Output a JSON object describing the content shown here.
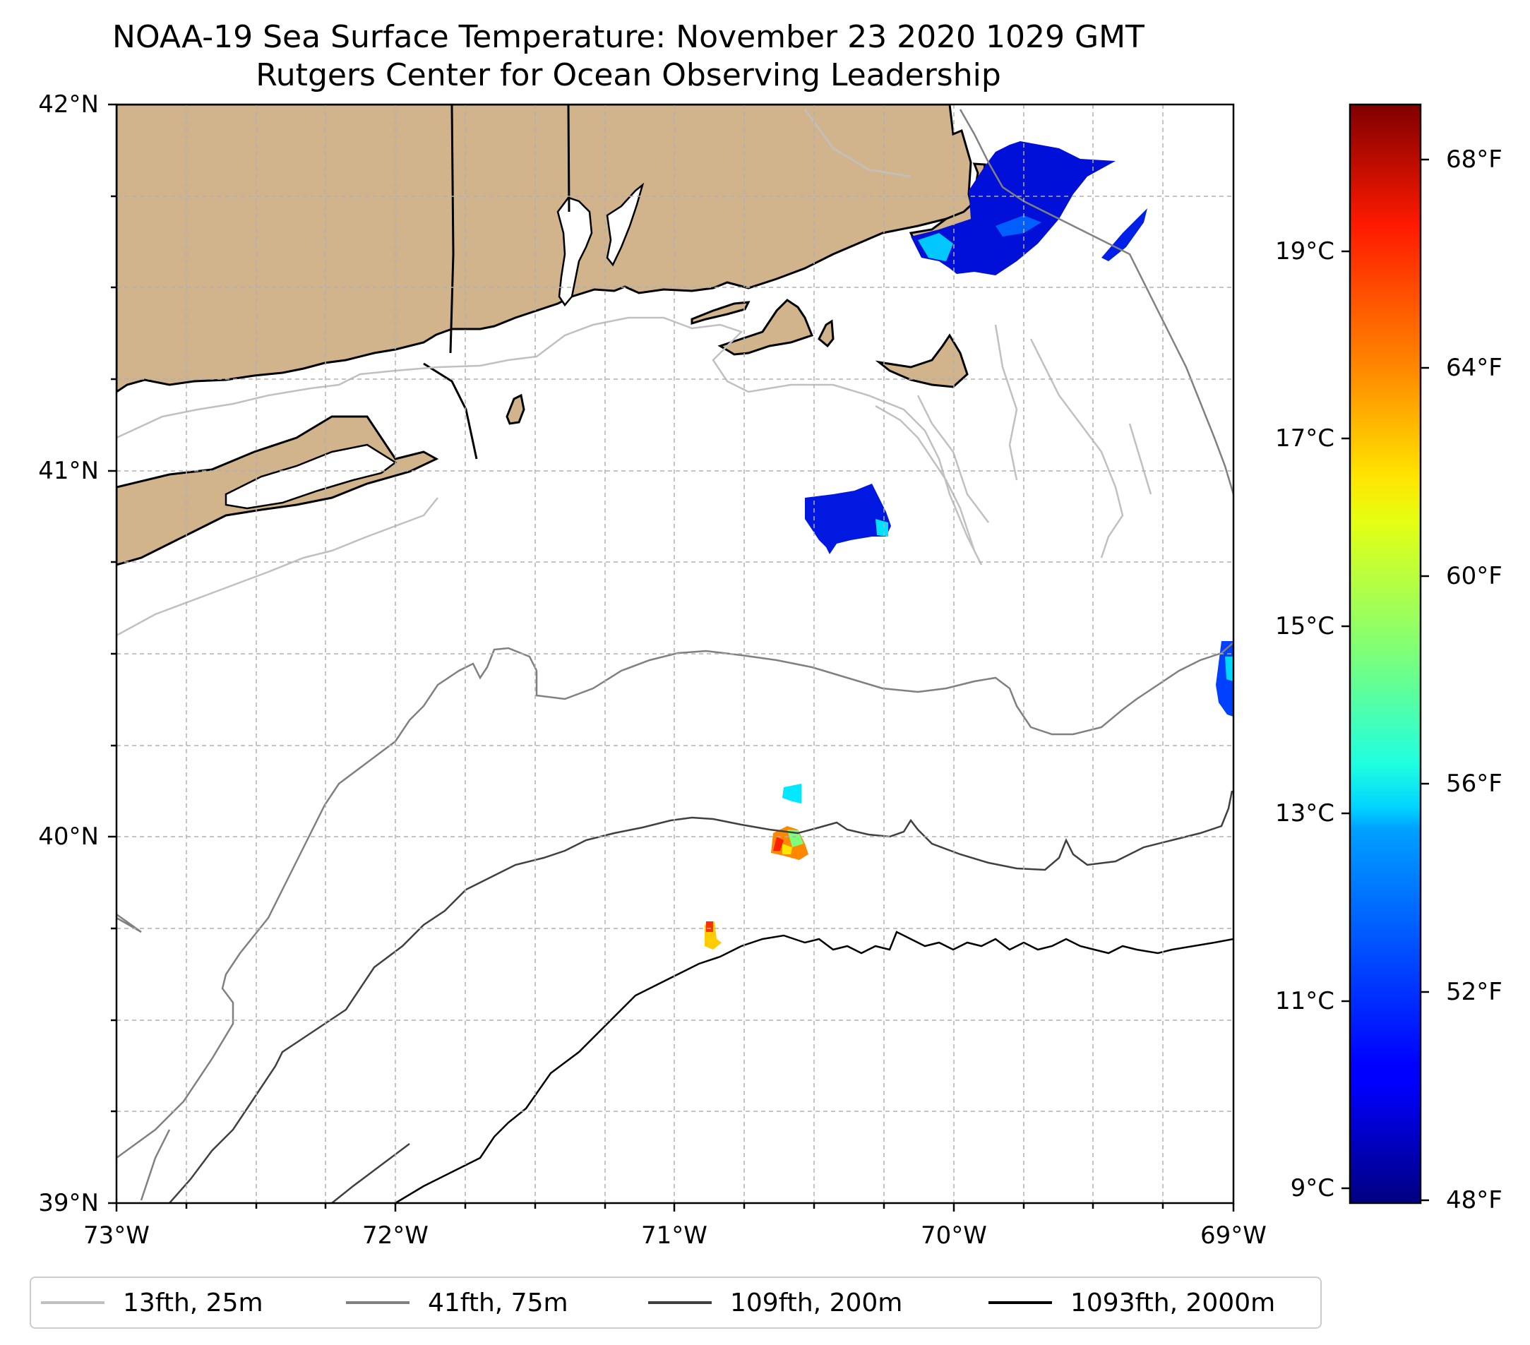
{
  "title": {
    "line1": "NOAA-19 Sea Surface Temperature: November 23 2020 1029 GMT",
    "line2": "Rutgers Center for Ocean Observing Leadership"
  },
  "axes": {
    "lat_ticks": [
      "42°N",
      "41°N",
      "40°N",
      "39°N"
    ],
    "lon_ticks": [
      "73°W",
      "72°W",
      "71°W",
      "70°W",
      "69°W"
    ]
  },
  "colorbar": {
    "celsius_ticks": [
      "19°C",
      "17°C",
      "15°C",
      "13°C",
      "11°C",
      "9°C"
    ],
    "fahrenheit_ticks": [
      "68°F",
      "64°F",
      "60°F",
      "56°F",
      "52°F",
      "48°F"
    ],
    "range_c": [
      8.8,
      20.6
    ],
    "colormap": "jet"
  },
  "legend": [
    {
      "label": "13fth, 25m",
      "color": "#c0c0c0"
    },
    {
      "label": "41fth, 75m",
      "color": "#808080"
    },
    {
      "label": "109fth, 200m",
      "color": "#404040"
    },
    {
      "label": "1093fth, 2000m",
      "color": "#000000"
    }
  ],
  "colors": {
    "land": "#d2b48c",
    "grid": "#b0b0b0"
  }
}
